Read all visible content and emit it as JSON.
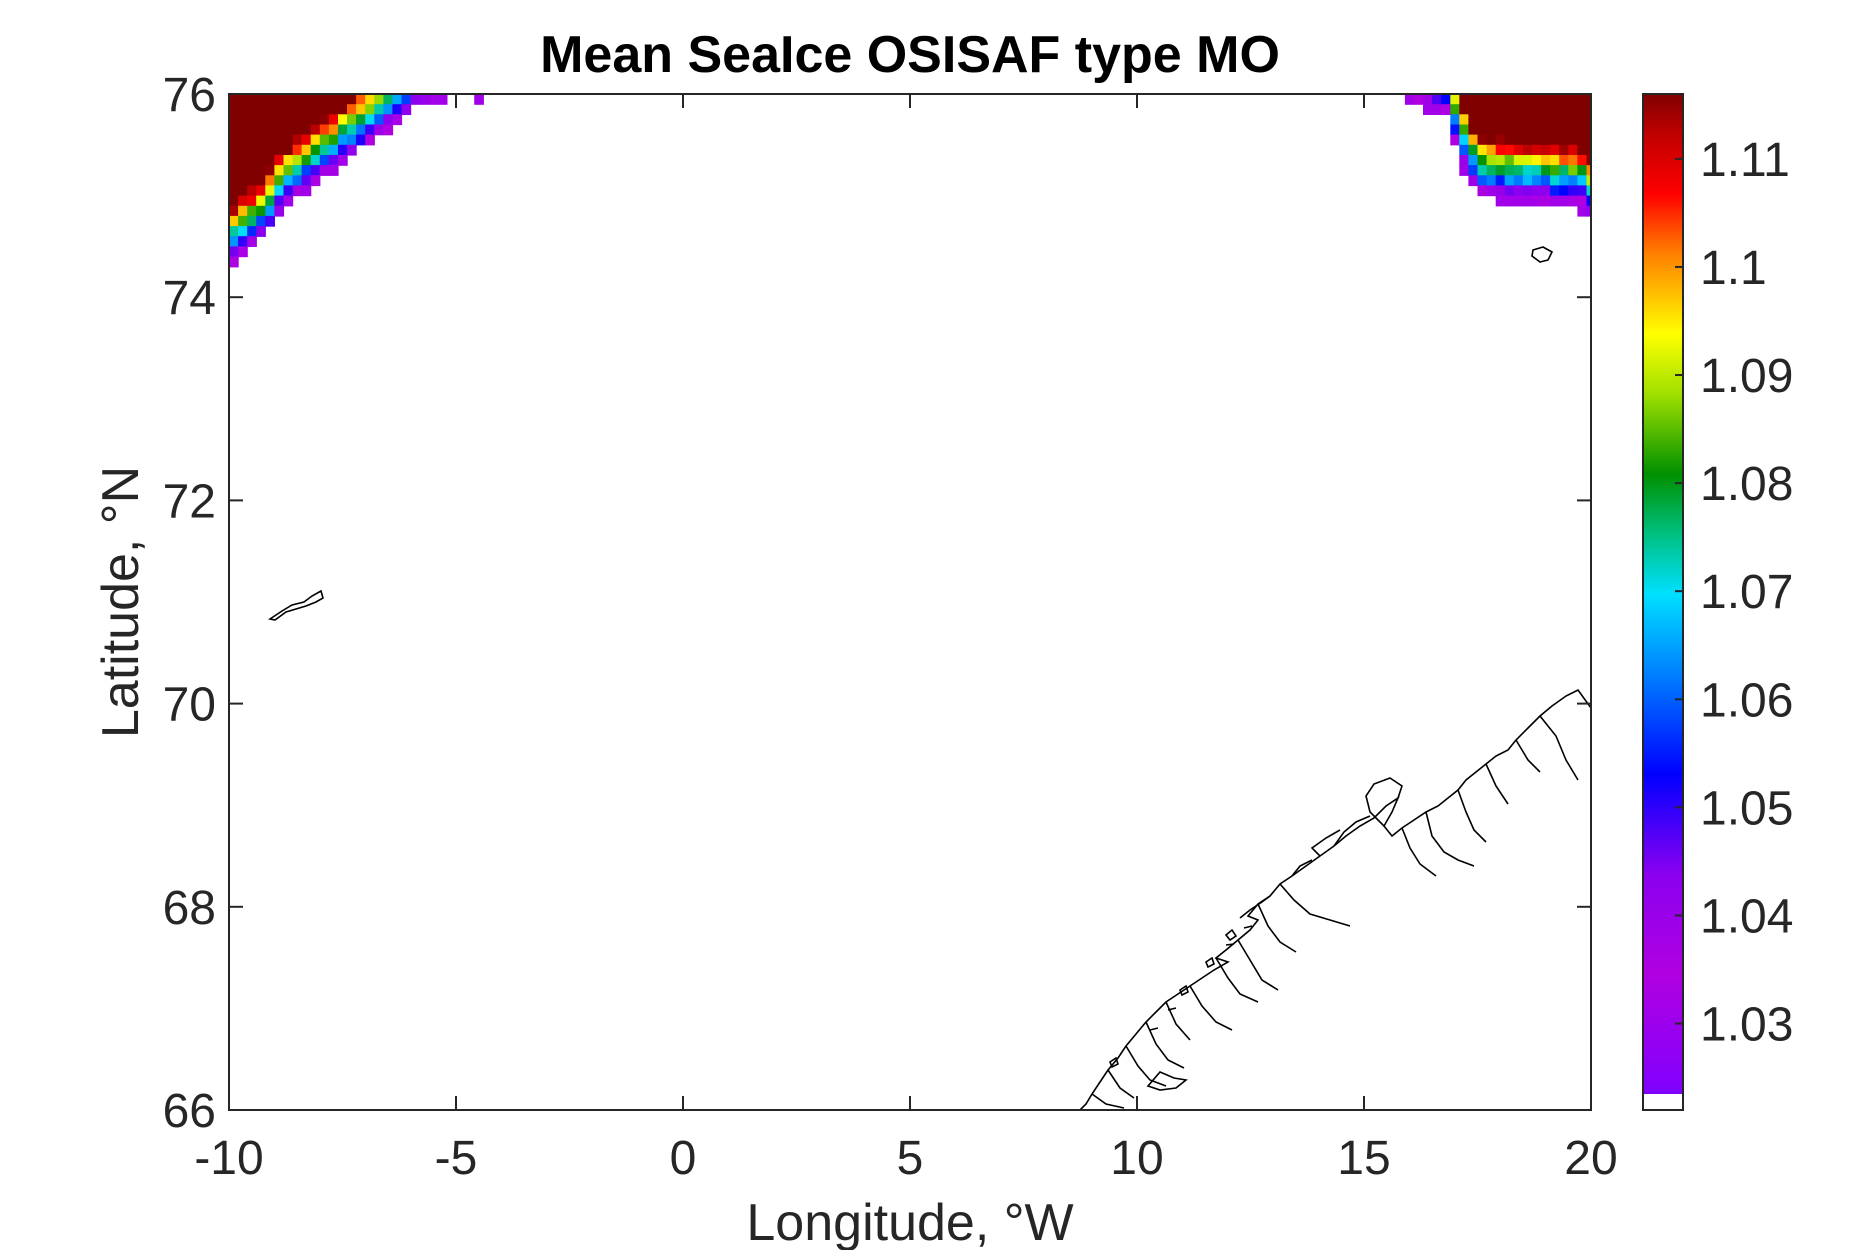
{
  "chart_data": {
    "type": "heatmap",
    "title": "Mean SeaIce OSISAF type MO",
    "xlabel": "Longitude, °W",
    "ylabel": "Latitude, °N",
    "xlim": [
      -10,
      20
    ],
    "ylim": [
      66,
      76
    ],
    "xticks": [
      -10,
      -5,
      0,
      5,
      10,
      15,
      20
    ],
    "xtick_labels": [
      "-10",
      "-5",
      "0",
      "5",
      "10",
      "15",
      "20"
    ],
    "yticks": [
      66,
      68,
      70,
      72,
      74,
      76
    ],
    "ytick_labels": [
      "66",
      "68",
      "70",
      "72",
      "74",
      "76"
    ],
    "grid": false,
    "colorbar": {
      "range": [
        1.022,
        1.116
      ],
      "ticks": [
        1.03,
        1.04,
        1.05,
        1.06,
        1.07,
        1.08,
        1.09,
        1.1,
        1.11
      ],
      "tick_labels": [
        "1.03",
        "1.04",
        "1.05",
        "1.06",
        "1.07",
        "1.08",
        "1.09",
        "1.1",
        "1.11"
      ],
      "colormap": "jet-like (purple → blue → cyan → green → yellow → red → dark red), white for lowest bin",
      "low_color": "#ffffff",
      "high_color": "#800000"
    },
    "ice_regions": [
      {
        "location": "north-west corner",
        "boundary_points": [
          [
            -10,
            74.3
          ],
          [
            -9.2,
            74.6
          ],
          [
            -8.8,
            74.9
          ],
          [
            -7.8,
            75.2
          ],
          [
            -6.7,
            75.6
          ],
          [
            -5.8,
            75.9
          ],
          [
            -4.6,
            76
          ]
        ],
        "core_value": 1.116,
        "edge_value": 1.03
      },
      {
        "location": "north-east corner",
        "boundary_points": [
          [
            15.9,
            76
          ],
          [
            16.8,
            75.8
          ],
          [
            17.1,
            75.4
          ],
          [
            17.5,
            75.0
          ],
          [
            19.8,
            74.9
          ],
          [
            20,
            74.8
          ]
        ],
        "core_value": 1.116,
        "edge_value": 1.03
      }
    ],
    "coastlines": [
      "Jan Mayen",
      "Bear Island",
      "Norwegian coast"
    ]
  }
}
